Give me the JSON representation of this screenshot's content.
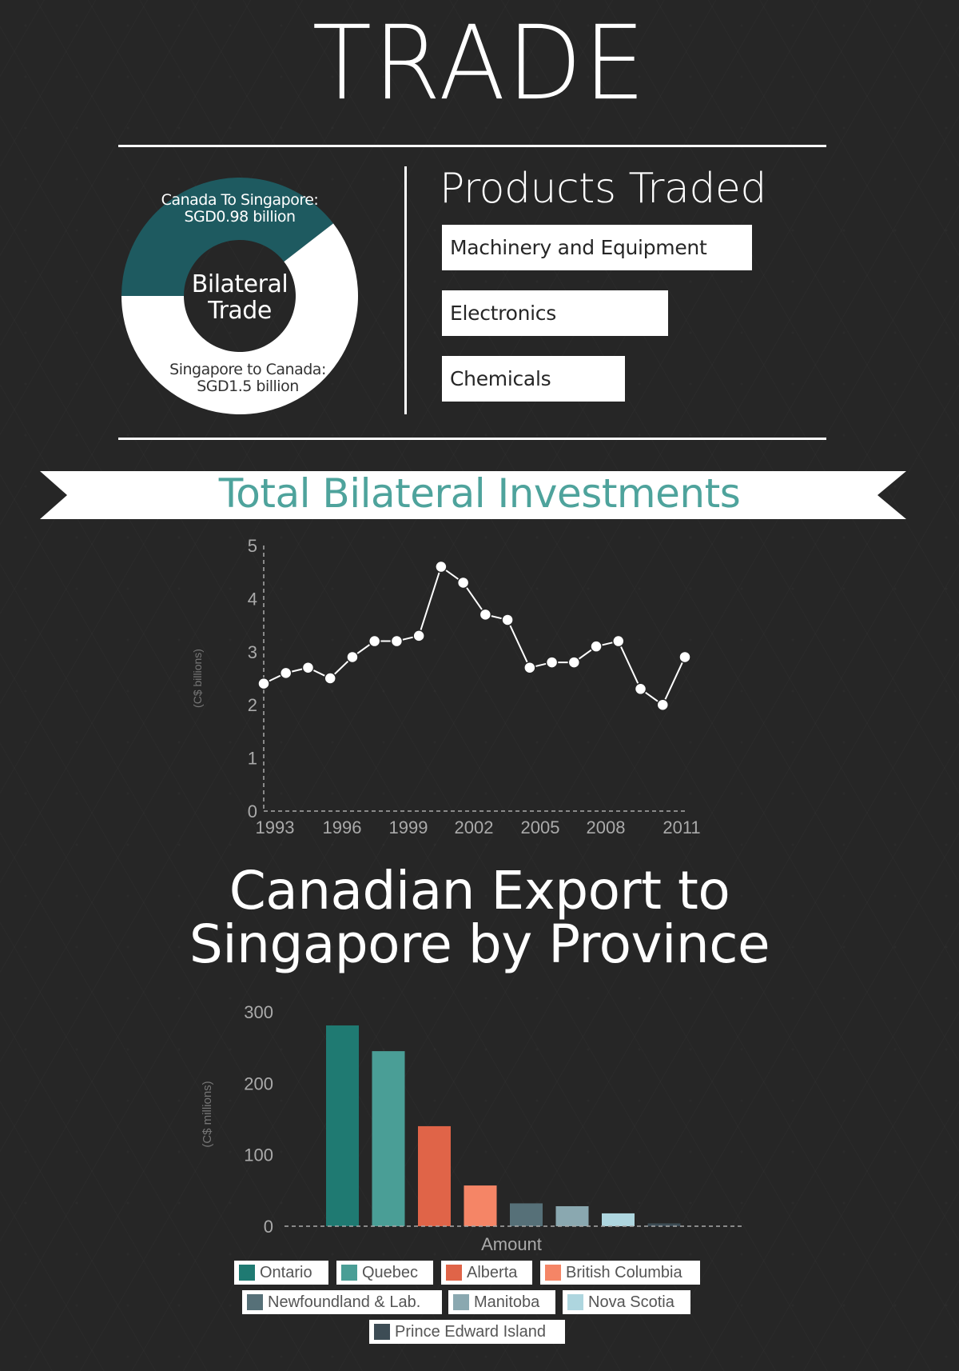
{
  "title": "TRADE",
  "bilateral": {
    "center_label_1": "Bilateral",
    "center_label_2": "Trade",
    "canada_to_singapore_label": "Canada To Singapore:",
    "canada_to_singapore_value": "SGD0.98 billion",
    "singapore_to_canada_label": "Singapore to Canada:",
    "singapore_to_canada_value": "SGD1.5 billion",
    "colors": {
      "canada": "#1e5a60",
      "singapore": "#ffffff"
    }
  },
  "products": {
    "title": "Products Traded",
    "items": [
      {
        "label": "Machinery and Equipment",
        "level": 1.0
      },
      {
        "label": "Electronics",
        "level": 0.73
      },
      {
        "label": "Chemicals",
        "level": 0.59
      }
    ]
  },
  "investments_banner": "Total Bilateral Investments",
  "export_title_line1": "Canadian Export to",
  "export_title_line2": "Singapore by Province",
  "chart_data": [
    {
      "type": "donut",
      "values": [
        0.98,
        1.5
      ],
      "labels": [
        "Canada To Singapore: SGD0.98 billion",
        "Singapore to Canada: SGD1.5 billion"
      ],
      "center_text": "Bilateral Trade"
    },
    {
      "type": "line",
      "title": "Total Bilateral Investments",
      "ylabel": "(C$ billions)",
      "xlabel": "",
      "ylim": [
        0,
        5
      ],
      "yticks": [
        0,
        1,
        2,
        3,
        4,
        5
      ],
      "xticks": [
        "1993",
        "1996",
        "1999",
        "2002",
        "2005",
        "2008",
        "2011"
      ],
      "x": [
        1993,
        1994,
        1995,
        1996,
        1997,
        1998,
        1999,
        2000,
        2001,
        2002,
        2003,
        2004,
        2005,
        2006,
        2007,
        2008,
        2009,
        2010,
        2011,
        2012
      ],
      "values": [
        2.4,
        2.6,
        2.7,
        2.5,
        2.9,
        3.2,
        3.2,
        3.3,
        4.6,
        4.3,
        3.7,
        3.6,
        2.7,
        2.8,
        2.8,
        3.1,
        3.2,
        2.3,
        2.0,
        2.9
      ],
      "grid": false
    },
    {
      "type": "bar",
      "title": "Canadian Export to Singapore by Province",
      "ylabel": "(C$ millions)",
      "xlabel": "Amount",
      "ylim": [
        0,
        300
      ],
      "yticks": [
        0,
        100,
        200,
        300
      ],
      "legend_position": "bottom",
      "series": [
        {
          "name": "Ontario",
          "values": [
            281
          ],
          "color": "#1f7a72"
        },
        {
          "name": "Quebec",
          "values": [
            245
          ],
          "color": "#4a9e96"
        },
        {
          "name": "Alberta",
          "values": [
            140
          ],
          "color": "#e06448"
        },
        {
          "name": "British Columbia",
          "values": [
            57
          ],
          "color": "#f58566"
        },
        {
          "name": "Newfoundland & Lab.",
          "values": [
            32
          ],
          "color": "#567078"
        },
        {
          "name": "Manitoba",
          "values": [
            28
          ],
          "color": "#8aa8b0"
        },
        {
          "name": "Nova Scotia",
          "values": [
            18
          ],
          "color": "#aed6df"
        },
        {
          "name": "Prince Edward Island",
          "values": [
            4
          ],
          "color": "#3d4c55"
        }
      ]
    }
  ]
}
